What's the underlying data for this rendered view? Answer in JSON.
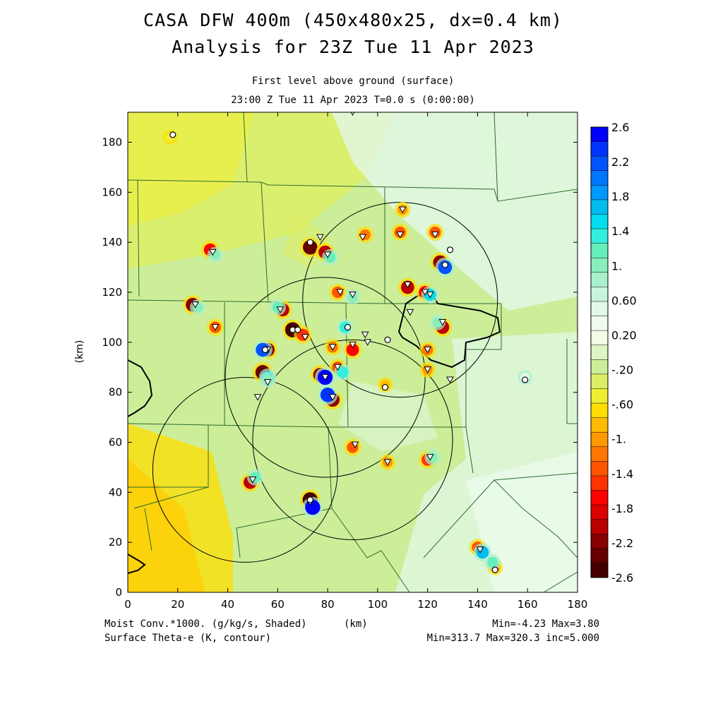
{
  "header": {
    "title_line1": "CASA DFW 400m (450x480x25, dx=0.4 km)",
    "title_line2": "Analysis for 23Z Tue 11 Apr 2023",
    "subtitle_line1": "First level above ground (surface)",
    "subtitle_line2": "23:00 Z Tue 11 Apr 2023    T=0.0 s (0:00:00)"
  },
  "footer": {
    "left_line1": "Moist Conv.*1000. (g/kg/s, Shaded)",
    "left_line2": "Surface Theta-e (K, contour)",
    "xunit": "(km)",
    "right_line1": "Min=-4.23 Max=3.80",
    "right_line2": "Min=313.7 Max=320.3 inc=5.000"
  },
  "chart_data": {
    "type": "heatmap",
    "xlabel": "",
    "ylabel": "(km)",
    "xlim": [
      0,
      180
    ],
    "ylim": [
      0,
      192
    ],
    "xticks": [
      "0",
      "20",
      "40",
      "60",
      "80",
      "100",
      "120",
      "140",
      "160",
      "180"
    ],
    "yticks": [
      "0",
      "20",
      "40",
      "60",
      "80",
      "100",
      "120",
      "140",
      "160",
      "180"
    ],
    "colorbar": {
      "labels": [
        "2.6",
        "2.2",
        "1.8",
        "1.4",
        "1.",
        "0.60",
        "0.20",
        "-.20",
        "-.60",
        "-1.",
        "-1.4",
        "-1.8",
        "-2.2",
        "-2.6"
      ],
      "colors": [
        "#0000ff",
        "#0033ff",
        "#0055ff",
        "#0077ff",
        "#0099ff",
        "#00bbee",
        "#00ddee",
        "#33eedd",
        "#66eebb",
        "#88eebb",
        "#aaf0cc",
        "#c8f4dd",
        "#e2f8e8",
        "#eefbee",
        "#f4fce6",
        "#dff5c4",
        "#ccee99",
        "#ddee66",
        "#eeee33",
        "#ffdd00",
        "#ffbb00",
        "#ff9900",
        "#ff7700",
        "#ff5500",
        "#ff3300",
        "#ff0000",
        "#dd0000",
        "#bb0000",
        "#880000",
        "#660000",
        "#440000"
      ]
    },
    "radar_circles": [
      {
        "cx": 109,
        "cy": 117,
        "r": 39
      },
      {
        "cx": 79,
        "cy": 86,
        "r": 40
      },
      {
        "cx": 90,
        "cy": 61,
        "r": 40
      },
      {
        "cx": 47,
        "cy": 49,
        "r": 37
      }
    ],
    "stations_triangle": [
      [
        90,
        192
      ],
      [
        110,
        153
      ],
      [
        94,
        142
      ],
      [
        109,
        143
      ],
      [
        123,
        143
      ],
      [
        77,
        142
      ],
      [
        80,
        135
      ],
      [
        34,
        136
      ],
      [
        85,
        120
      ],
      [
        90,
        119
      ],
      [
        112,
        123
      ],
      [
        119,
        120
      ],
      [
        121,
        119
      ],
      [
        113,
        112
      ],
      [
        27,
        115
      ],
      [
        61,
        113
      ],
      [
        126,
        108
      ],
      [
        35,
        106
      ],
      [
        95,
        103
      ],
      [
        71,
        102
      ],
      [
        82,
        98
      ],
      [
        90,
        99
      ],
      [
        96,
        100
      ],
      [
        56,
        97
      ],
      [
        120,
        97
      ],
      [
        84,
        90
      ],
      [
        120,
        89
      ],
      [
        129,
        85
      ],
      [
        56,
        84
      ],
      [
        52,
        78
      ],
      [
        79,
        86
      ],
      [
        82,
        78
      ],
      [
        91,
        59
      ],
      [
        104,
        52
      ],
      [
        121,
        54
      ],
      [
        50,
        45
      ],
      [
        73,
        36
      ],
      [
        141,
        17
      ]
    ],
    "stations_circle": [
      [
        18,
        183
      ],
      [
        73,
        140
      ],
      [
        129,
        137
      ],
      [
        127,
        131
      ],
      [
        88,
        106
      ],
      [
        66,
        105
      ],
      [
        68,
        105
      ],
      [
        104,
        101
      ],
      [
        55,
        97
      ],
      [
        103,
        82
      ],
      [
        159,
        85
      ],
      [
        73,
        37
      ],
      [
        147,
        9
      ]
    ],
    "moist_conv_extrema": [
      {
        "x": 110,
        "y": 153,
        "v": -1.0
      },
      {
        "x": 95,
        "y": 143,
        "v": -1.2
      },
      {
        "x": 109,
        "y": 144,
        "v": -1.4
      },
      {
        "x": 123,
        "y": 144,
        "v": -1.4
      },
      {
        "x": 73,
        "y": 138,
        "v": -2.4
      },
      {
        "x": 79,
        "y": 136,
        "v": -2.0
      },
      {
        "x": 81,
        "y": 134,
        "v": 1.2
      },
      {
        "x": 33,
        "y": 137,
        "v": -1.8
      },
      {
        "x": 35,
        "y": 135,
        "v": 1.0
      },
      {
        "x": 84,
        "y": 120,
        "v": -1.4
      },
      {
        "x": 90,
        "y": 118,
        "v": 1.0
      },
      {
        "x": 112,
        "y": 122,
        "v": -2.0
      },
      {
        "x": 119,
        "y": 120,
        "v": -1.8
      },
      {
        "x": 121,
        "y": 119,
        "v": 1.6
      },
      {
        "x": 125,
        "y": 132,
        "v": -2.2
      },
      {
        "x": 127,
        "y": 130,
        "v": 2.2
      },
      {
        "x": 26,
        "y": 115,
        "v": -2.2
      },
      {
        "x": 28,
        "y": 114,
        "v": 1.0
      },
      {
        "x": 62,
        "y": 113,
        "v": -2.0
      },
      {
        "x": 60,
        "y": 114,
        "v": 1.2
      },
      {
        "x": 126,
        "y": 106,
        "v": -2.0
      },
      {
        "x": 124,
        "y": 108,
        "v": 1.0
      },
      {
        "x": 35,
        "y": 106,
        "v": -1.4
      },
      {
        "x": 66,
        "y": 105,
        "v": -2.6
      },
      {
        "x": 70,
        "y": 103,
        "v": -1.6
      },
      {
        "x": 87,
        "y": 106,
        "v": 1.4
      },
      {
        "x": 56,
        "y": 97,
        "v": -2.2
      },
      {
        "x": 54,
        "y": 97,
        "v": 2.2
      },
      {
        "x": 82,
        "y": 98,
        "v": -1.2
      },
      {
        "x": 90,
        "y": 97,
        "v": -1.8
      },
      {
        "x": 120,
        "y": 97,
        "v": -1.2
      },
      {
        "x": 84,
        "y": 90,
        "v": -1.4
      },
      {
        "x": 86,
        "y": 88,
        "v": 1.4
      },
      {
        "x": 120,
        "y": 89,
        "v": -1.0
      },
      {
        "x": 54,
        "y": 88,
        "v": -2.4
      },
      {
        "x": 56,
        "y": 86,
        "v": 1.6
      },
      {
        "x": 77,
        "y": 87,
        "v": -2.2
      },
      {
        "x": 79,
        "y": 86,
        "v": 2.6
      },
      {
        "x": 82,
        "y": 77,
        "v": -2.2
      },
      {
        "x": 80,
        "y": 79,
        "v": 2.4
      },
      {
        "x": 90,
        "y": 58,
        "v": -1.4
      },
      {
        "x": 104,
        "y": 52,
        "v": -1.0
      },
      {
        "x": 120,
        "y": 53,
        "v": -1.6
      },
      {
        "x": 122,
        "y": 54,
        "v": 1.0
      },
      {
        "x": 49,
        "y": 44,
        "v": -2.0
      },
      {
        "x": 51,
        "y": 46,
        "v": 1.2
      },
      {
        "x": 73,
        "y": 37,
        "v": -2.6
      },
      {
        "x": 74,
        "y": 34,
        "v": 2.6
      },
      {
        "x": 140,
        "y": 18,
        "v": -1.4
      },
      {
        "x": 142,
        "y": 16,
        "v": 1.8
      },
      {
        "x": 147,
        "y": 10,
        "v": -1.0
      },
      {
        "x": 146,
        "y": 12,
        "v": 1.2
      },
      {
        "x": 159,
        "y": 86,
        "v": 0.6
      },
      {
        "x": 103,
        "y": 83,
        "v": -0.8
      },
      {
        "x": 56,
        "y": 85,
        "v": 1.0
      },
      {
        "x": 17,
        "y": 182,
        "v": -0.6
      }
    ]
  }
}
